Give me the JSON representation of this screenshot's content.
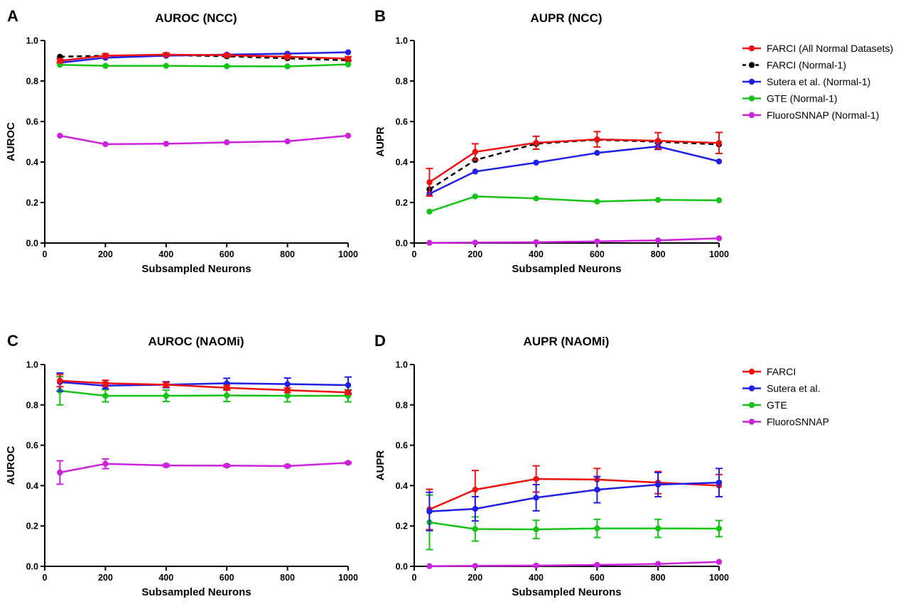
{
  "chart_data": [
    {
      "panel": "A",
      "type": "line",
      "title": "AUROC (NCC)",
      "xlabel": "Subsampled Neurons",
      "ylabel": "AUROC",
      "x": [
        50,
        200,
        400,
        600,
        800,
        1000
      ],
      "xticks": [
        0,
        200,
        400,
        600,
        800,
        1000
      ],
      "yticks": [
        0.0,
        0.2,
        0.4,
        0.6,
        0.8,
        1.0
      ],
      "xlim": [
        0,
        1000
      ],
      "ylim": [
        0,
        1.0
      ],
      "grid": false,
      "series": [
        {
          "name": "FARCI (Normal-1)",
          "color": "#000000",
          "dashed": true,
          "values": [
            0.92,
            0.925,
            0.928,
            0.922,
            0.912,
            0.902
          ],
          "err": [
            0,
            0,
            0,
            0,
            0,
            0
          ]
        },
        {
          "name": "Sutera et al. (Normal-1)",
          "color": "#1f1fe8",
          "dashed": false,
          "values": [
            0.89,
            0.915,
            0.925,
            0.93,
            0.935,
            0.942
          ],
          "err": [
            0,
            0,
            0,
            0,
            0,
            0
          ]
        },
        {
          "name": "GTE (Normal-1)",
          "color": "#16c416",
          "dashed": false,
          "values": [
            0.88,
            0.875,
            0.875,
            0.873,
            0.872,
            0.882
          ],
          "err": [
            0,
            0,
            0,
            0,
            0,
            0
          ]
        },
        {
          "name": "FluoroSNNAP (Normal-1)",
          "color": "#cc22dd",
          "dashed": false,
          "values": [
            0.53,
            0.488,
            0.49,
            0.497,
            0.502,
            0.53
          ],
          "err": [
            0,
            0,
            0,
            0,
            0,
            0
          ]
        },
        {
          "name": "FARCI (All Normal Datasets)",
          "color": "#ee1111",
          "dashed": false,
          "values": [
            0.9,
            0.925,
            0.93,
            0.927,
            0.92,
            0.91
          ],
          "err": [
            0.01,
            0.01,
            0.008,
            0.008,
            0.01,
            0.01
          ]
        }
      ]
    },
    {
      "panel": "B",
      "type": "line",
      "title": "AUPR (NCC)",
      "xlabel": "Subsampled Neurons",
      "ylabel": "AUPR",
      "x": [
        50,
        200,
        400,
        600,
        800,
        1000
      ],
      "xticks": [
        0,
        200,
        400,
        600,
        800,
        1000
      ],
      "yticks": [
        0.0,
        0.2,
        0.4,
        0.6,
        0.8,
        1.0
      ],
      "xlim": [
        0,
        1000
      ],
      "ylim": [
        0,
        1.0
      ],
      "grid": false,
      "legend_position": "right",
      "legend": [
        {
          "label": "FARCI (All Normal Datasets)",
          "color": "#ee1111",
          "dashed": false
        },
        {
          "label": "FARCI (Normal-1)",
          "color": "#000000",
          "dashed": true
        },
        {
          "label": "Sutera et al. (Normal-1)",
          "color": "#1f1fe8",
          "dashed": false
        },
        {
          "label": "GTE (Normal-1)",
          "color": "#16c416",
          "dashed": false
        },
        {
          "label": "FluoroSNNAP (Normal-1)",
          "color": "#cc22dd",
          "dashed": false
        }
      ],
      "series": [
        {
          "name": "FARCI (Normal-1)",
          "color": "#000000",
          "dashed": true,
          "values": [
            0.265,
            0.41,
            0.49,
            0.51,
            0.5,
            0.487
          ],
          "err": [
            0,
            0,
            0,
            0,
            0,
            0
          ]
        },
        {
          "name": "Sutera et al. (Normal-1)",
          "color": "#1f1fe8",
          "dashed": false,
          "values": [
            0.243,
            0.353,
            0.397,
            0.445,
            0.477,
            0.403
          ],
          "err": [
            0,
            0,
            0,
            0,
            0.015,
            0
          ]
        },
        {
          "name": "GTE (Normal-1)",
          "color": "#16c416",
          "dashed": false,
          "values": [
            0.155,
            0.23,
            0.22,
            0.205,
            0.213,
            0.211
          ],
          "err": [
            0,
            0,
            0,
            0,
            0,
            0
          ]
        },
        {
          "name": "FluoroSNNAP (Normal-1)",
          "color": "#cc22dd",
          "dashed": false,
          "values": [
            0.001,
            0.002,
            0.004,
            0.008,
            0.013,
            0.023
          ],
          "err": [
            0,
            0,
            0,
            0,
            0,
            0
          ]
        },
        {
          "name": "FARCI (All Normal Datasets)",
          "color": "#ee1111",
          "dashed": false,
          "values": [
            0.3,
            0.45,
            0.495,
            0.512,
            0.505,
            0.494
          ],
          "err": [
            0.068,
            0.04,
            0.032,
            0.038,
            0.04,
            0.052
          ]
        }
      ]
    },
    {
      "panel": "C",
      "type": "line",
      "title": "AUROC (NAOMi)",
      "xlabel": "Subsampled Neurons",
      "ylabel": "AUROC",
      "x": [
        50,
        200,
        400,
        600,
        800,
        1000
      ],
      "xticks": [
        0,
        200,
        400,
        600,
        800,
        1000
      ],
      "yticks": [
        0.0,
        0.2,
        0.4,
        0.6,
        0.8,
        1.0
      ],
      "xlim": [
        0,
        1000
      ],
      "ylim": [
        0,
        1.0
      ],
      "grid": false,
      "series": [
        {
          "name": "GTE",
          "color": "#16c416",
          "dashed": false,
          "values": [
            0.87,
            0.845,
            0.845,
            0.847,
            0.845,
            0.845
          ],
          "err": [
            0.07,
            0.03,
            0.028,
            0.03,
            0.03,
            0.03
          ]
        },
        {
          "name": "Sutera et al.",
          "color": "#1f1fe8",
          "dashed": false,
          "values": [
            0.913,
            0.895,
            0.9,
            0.907,
            0.903,
            0.898
          ],
          "err": [
            0.045,
            0.015,
            0.015,
            0.025,
            0.03,
            0.04
          ]
        },
        {
          "name": "FluoroSNNAP",
          "color": "#cc22dd",
          "dashed": false,
          "values": [
            0.465,
            0.508,
            0.5,
            0.499,
            0.497,
            0.513
          ],
          "err": [
            0.058,
            0.024,
            0.006,
            0.006,
            0.005,
            0.004
          ]
        },
        {
          "name": "FARCI",
          "color": "#ee1111",
          "dashed": false,
          "values": [
            0.92,
            0.907,
            0.9,
            0.885,
            0.873,
            0.862
          ],
          "err": [
            0.03,
            0.015,
            0.012,
            0.012,
            0.012,
            0.01
          ]
        }
      ]
    },
    {
      "panel": "D",
      "type": "line",
      "title": "AUPR (NAOMi)",
      "xlabel": "Subsampled Neurons",
      "ylabel": "AUPR",
      "x": [
        50,
        200,
        400,
        600,
        800,
        1000
      ],
      "xticks": [
        0,
        200,
        400,
        600,
        800,
        1000
      ],
      "yticks": [
        0.0,
        0.2,
        0.4,
        0.6,
        0.8,
        1.0
      ],
      "xlim": [
        0,
        1000
      ],
      "ylim": [
        0,
        1.0
      ],
      "grid": false,
      "legend_position": "right",
      "legend": [
        {
          "label": "FARCI",
          "color": "#ee1111",
          "dashed": false
        },
        {
          "label": "Sutera et al.",
          "color": "#1f1fe8",
          "dashed": false
        },
        {
          "label": "GTE",
          "color": "#16c416",
          "dashed": false
        },
        {
          "label": "FluoroSNNAP",
          "color": "#cc22dd",
          "dashed": false
        }
      ],
      "series": [
        {
          "name": "GTE",
          "color": "#16c416",
          "dashed": false,
          "values": [
            0.218,
            0.185,
            0.183,
            0.188,
            0.188,
            0.187
          ],
          "err": [
            0.135,
            0.06,
            0.045,
            0.045,
            0.045,
            0.04
          ]
        },
        {
          "name": "FluoroSNNAP",
          "color": "#cc22dd",
          "dashed": false,
          "values": [
            0.001,
            0.002,
            0.004,
            0.007,
            0.012,
            0.022
          ],
          "err": [
            0,
            0,
            0,
            0,
            0,
            0
          ]
        },
        {
          "name": "FARCI",
          "color": "#ee1111",
          "dashed": false,
          "values": [
            0.282,
            0.38,
            0.433,
            0.43,
            0.415,
            0.4
          ],
          "err": [
            0.1,
            0.095,
            0.065,
            0.055,
            0.055,
            0.055
          ]
        },
        {
          "name": "Sutera et al.",
          "color": "#1f1fe8",
          "dashed": false,
          "values": [
            0.272,
            0.285,
            0.34,
            0.38,
            0.405,
            0.415
          ],
          "err": [
            0.095,
            0.06,
            0.065,
            0.065,
            0.06,
            0.07
          ]
        }
      ]
    }
  ]
}
